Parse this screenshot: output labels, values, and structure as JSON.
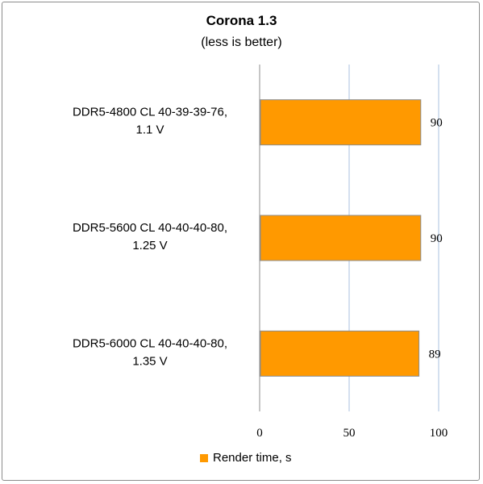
{
  "chart_data": {
    "type": "bar",
    "orientation": "horizontal",
    "title": "Corona 1.3",
    "subtitle": "(less is better)",
    "categories": [
      [
        "DDR5-4800 CL 40-39-39-76,",
        "1.1 V"
      ],
      [
        "DDR5-5600 CL 40-40-40-80,",
        "1.25 V"
      ],
      [
        "DDR5-6000 CL 40-40-40-80,",
        "1.35 V"
      ]
    ],
    "series": [
      {
        "name": "Render time, s",
        "values": [
          90,
          90,
          89
        ],
        "color": "#ff9900"
      }
    ],
    "xlim": [
      0,
      100
    ],
    "xticks": [
      0,
      50,
      100
    ],
    "grid": true,
    "legend": "bottom",
    "bar_outline_color": "#8c8c8c",
    "gridline_color": "#b8cce4"
  }
}
